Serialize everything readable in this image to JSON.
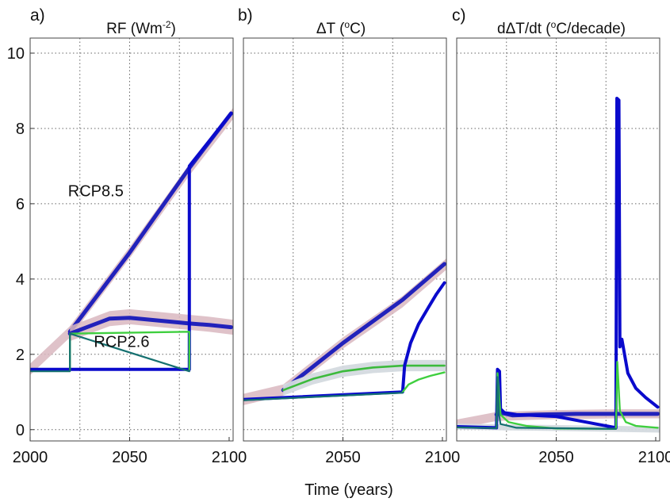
{
  "figure": {
    "xlabel": "Time (years)"
  },
  "panels": [
    {
      "letter": "a)",
      "title_main": "RF (Wm",
      "title_sup": "-2",
      "title_tail": ")"
    },
    {
      "letter": "b)",
      "title_main": "ΔT (",
      "title_sup": "o",
      "title_tail": "C)"
    },
    {
      "letter": "c)",
      "title_main": "dΔT/dt (",
      "title_sup": "o",
      "title_tail": "C/decade)"
    }
  ],
  "colors": {
    "rcp85_central": "#2222bb",
    "rcp85_band": "#d9b7bf",
    "rcp26_central": "#3cba3c",
    "rcp26_band": "#d4dadf",
    "stepped": "#0a0acc",
    "stepped_green": "#3fcf3f",
    "stepped_teal": "#157070"
  },
  "chart_data": [
    {
      "type": "line",
      "title": "RF (Wm-2)",
      "xlabel": "",
      "ylabel": "",
      "xlim": [
        2000,
        2102
      ],
      "ylim": [
        -0.3,
        10.4
      ],
      "xticks": [
        2000,
        2050,
        2100
      ],
      "yticks": [
        0,
        2,
        4,
        6,
        8,
        10
      ],
      "grid": true,
      "annotations": [
        {
          "text": "RCP8.5",
          "x": 2033,
          "y": 6.2
        },
        {
          "text": "RCP2.6",
          "x": 2046,
          "y": 2.2
        }
      ],
      "series": [
        {
          "name": "RCP8.5",
          "style": "band",
          "x": [
            2000,
            2020,
            2050,
            2080,
            2102
          ],
          "values": [
            1.6,
            2.6,
            4.7,
            6.9,
            8.4
          ],
          "half_width": 0.15
        },
        {
          "name": "RCP8.5",
          "style": "central",
          "x": [
            2020,
            2050,
            2080,
            2101
          ],
          "values": [
            2.6,
            4.7,
            6.95,
            8.4
          ]
        },
        {
          "name": "RCP2.6",
          "style": "band",
          "x": [
            2020,
            2030,
            2040,
            2050,
            2060,
            2070,
            2080,
            2090,
            2102
          ],
          "values": [
            2.55,
            2.75,
            2.95,
            3.0,
            2.95,
            2.9,
            2.85,
            2.8,
            2.72
          ],
          "half_width": 0.2
        },
        {
          "name": "RCP2.6",
          "style": "central",
          "x": [
            2020,
            2030,
            2040,
            2050,
            2060,
            2070,
            2080,
            2090,
            2101
          ],
          "values": [
            2.55,
            2.75,
            2.95,
            2.97,
            2.92,
            2.87,
            2.82,
            2.78,
            2.72
          ]
        },
        {
          "style": "stepped",
          "x": [
            2000,
            2080,
            2080,
            2101
          ],
          "values": [
            1.6,
            1.6,
            7.0,
            8.4
          ]
        },
        {
          "style": "stepped_green",
          "x": [
            2020,
            2020,
            2080,
            2080
          ],
          "values": [
            1.6,
            2.55,
            2.6,
            1.6
          ]
        },
        {
          "style": "stepped_teal",
          "x": [
            2000,
            2020,
            2020,
            2080
          ],
          "values": [
            1.55,
            1.55,
            2.55,
            1.55
          ]
        }
      ]
    },
    {
      "type": "line",
      "title": "ΔT (oC)",
      "xlabel": "",
      "ylabel": "",
      "xlim": [
        2000,
        2102
      ],
      "ylim": [
        -0.3,
        10.4
      ],
      "xticks": [
        2050,
        2100
      ],
      "grid": true,
      "series": [
        {
          "style": "band",
          "x": [
            2000,
            2020,
            2050,
            2080,
            2102
          ],
          "values": [
            0.8,
            1.05,
            2.3,
            3.4,
            4.4
          ],
          "half_width": 0.15
        },
        {
          "style": "central",
          "x": [
            2020,
            2050,
            2080,
            2101
          ],
          "values": [
            1.05,
            2.3,
            3.45,
            4.4
          ]
        },
        {
          "style": "band_gray",
          "x": [
            2020,
            2035,
            2050,
            2065,
            2080,
            2102
          ],
          "values": [
            1.05,
            1.35,
            1.55,
            1.65,
            1.7,
            1.7
          ],
          "half_width": 0.15
        },
        {
          "style": "central_green",
          "x": [
            2020,
            2035,
            2050,
            2065,
            2080,
            2101
          ],
          "values": [
            1.05,
            1.35,
            1.55,
            1.65,
            1.7,
            1.7
          ]
        },
        {
          "style": "stepped",
          "x": [
            2000,
            2080,
            2081,
            2084,
            2088,
            2093,
            2097,
            2101
          ],
          "values": [
            0.8,
            1.0,
            1.7,
            2.3,
            2.8,
            3.25,
            3.6,
            3.9
          ]
        },
        {
          "style": "stepped_green",
          "x": [
            2080,
            2083,
            2088,
            2094,
            2101
          ],
          "values": [
            1.0,
            1.2,
            1.33,
            1.43,
            1.52
          ]
        },
        {
          "style": "stepped_teal",
          "x": [
            2000,
            2080
          ],
          "values": [
            0.78,
            0.98
          ]
        }
      ]
    },
    {
      "type": "line",
      "title": "dΔT/dt (oC/decade)",
      "xlabel": "",
      "ylabel": "",
      "xlim": [
        2000,
        2102
      ],
      "ylim": [
        -0.3,
        10.4
      ],
      "xticks": [
        2050,
        2100
      ],
      "grid": true,
      "series": [
        {
          "style": "band",
          "x": [
            2000,
            2020,
            2050,
            2080,
            2102
          ],
          "values": [
            0.15,
            0.35,
            0.4,
            0.42,
            0.42
          ],
          "half_width": 0.12
        },
        {
          "style": "central",
          "x": [
            2020,
            2022,
            2028,
            2040,
            2060,
            2080,
            2101
          ],
          "values": [
            0.4,
            0.45,
            0.38,
            0.4,
            0.42,
            0.42,
            0.42
          ]
        },
        {
          "style": "band_gray",
          "x": [
            2000,
            2040,
            2080,
            2102
          ],
          "values": [
            0.08,
            0.05,
            0.02,
            0.0
          ],
          "half_width": 0.08
        },
        {
          "style": "stepped",
          "x": [
            2000,
            2020,
            2020.5,
            2021.5,
            2022,
            2024,
            2030,
            2050,
            2080,
            2080.5,
            2081.5,
            2082,
            2083,
            2086,
            2090,
            2095,
            2101
          ],
          "values": [
            0.08,
            0.05,
            1.6,
            1.55,
            0.55,
            0.45,
            0.4,
            0.35,
            0.05,
            8.8,
            8.75,
            2.2,
            2.4,
            1.5,
            1.1,
            0.85,
            0.6
          ]
        },
        {
          "style": "stepped_green",
          "x": [
            2020,
            2020.5,
            2022,
            2026,
            2035,
            2050,
            2080,
            2080.7,
            2082,
            2085,
            2090,
            2101
          ],
          "values": [
            0.05,
            1.5,
            0.4,
            0.2,
            0.1,
            0.03,
            0.02,
            1.8,
            0.5,
            0.2,
            0.1,
            0.05
          ]
        },
        {
          "style": "stepped_teal",
          "x": [
            2000,
            2020,
            2020.5,
            2021.3,
            2022,
            2030,
            2080
          ],
          "values": [
            0.06,
            0.04,
            1.4,
            0.4,
            0.15,
            0.05,
            0.02
          ]
        }
      ]
    }
  ]
}
